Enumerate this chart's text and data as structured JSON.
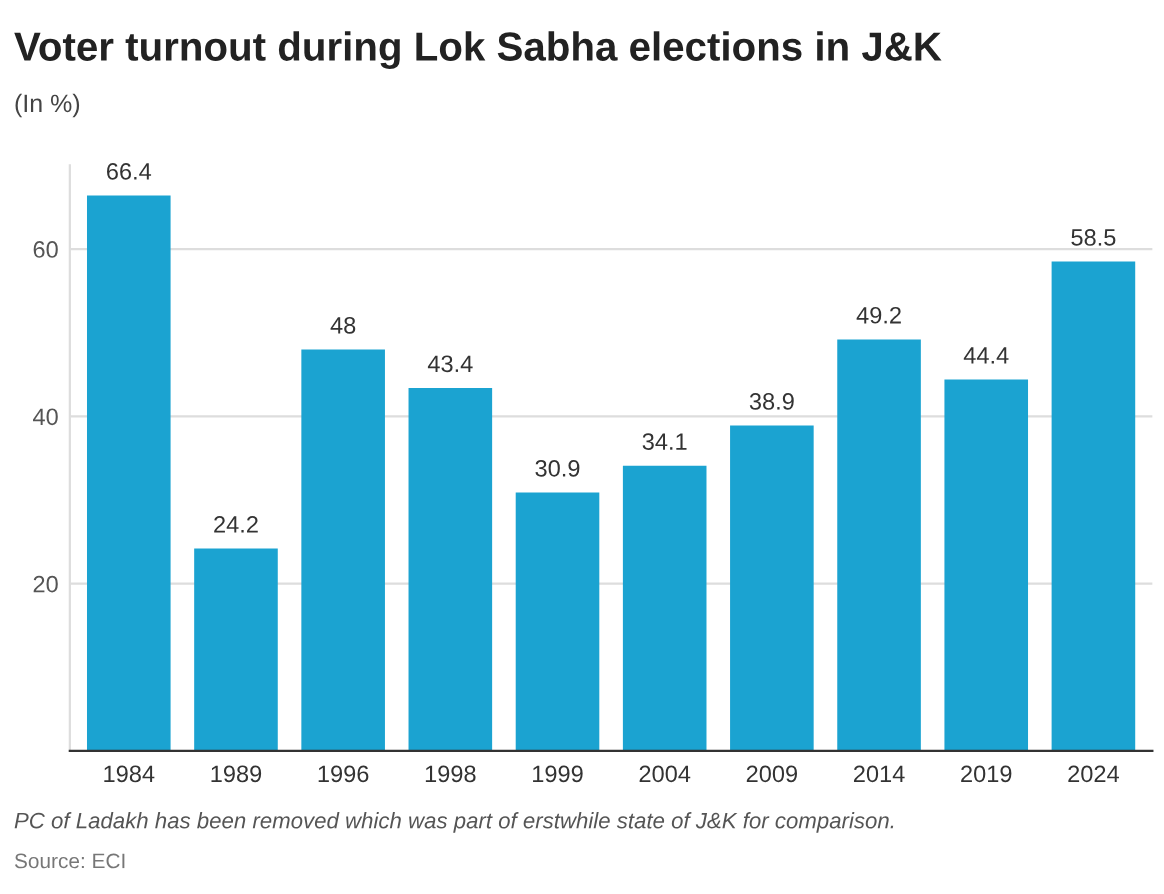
{
  "chart_data": {
    "type": "bar",
    "title": "Voter turnout during Lok Sabha elections in J&K",
    "subtitle": "(In %)",
    "categories": [
      "1984",
      "1989",
      "1996",
      "1998",
      "1999",
      "2004",
      "2009",
      "2014",
      "2019",
      "2024"
    ],
    "values": [
      66.4,
      24.2,
      48,
      43.4,
      30.9,
      34.1,
      38.9,
      49.2,
      44.4,
      58.5
    ],
    "color": "#1ba3d1",
    "ylim": [
      0,
      70
    ],
    "yticks": [
      20,
      40,
      60
    ],
    "grid": "y",
    "data_labels": true,
    "annotations": [
      "PC of Ladakh has been removed which was part of erstwhile state of J&K for comparison.",
      "Source: ECI"
    ]
  }
}
